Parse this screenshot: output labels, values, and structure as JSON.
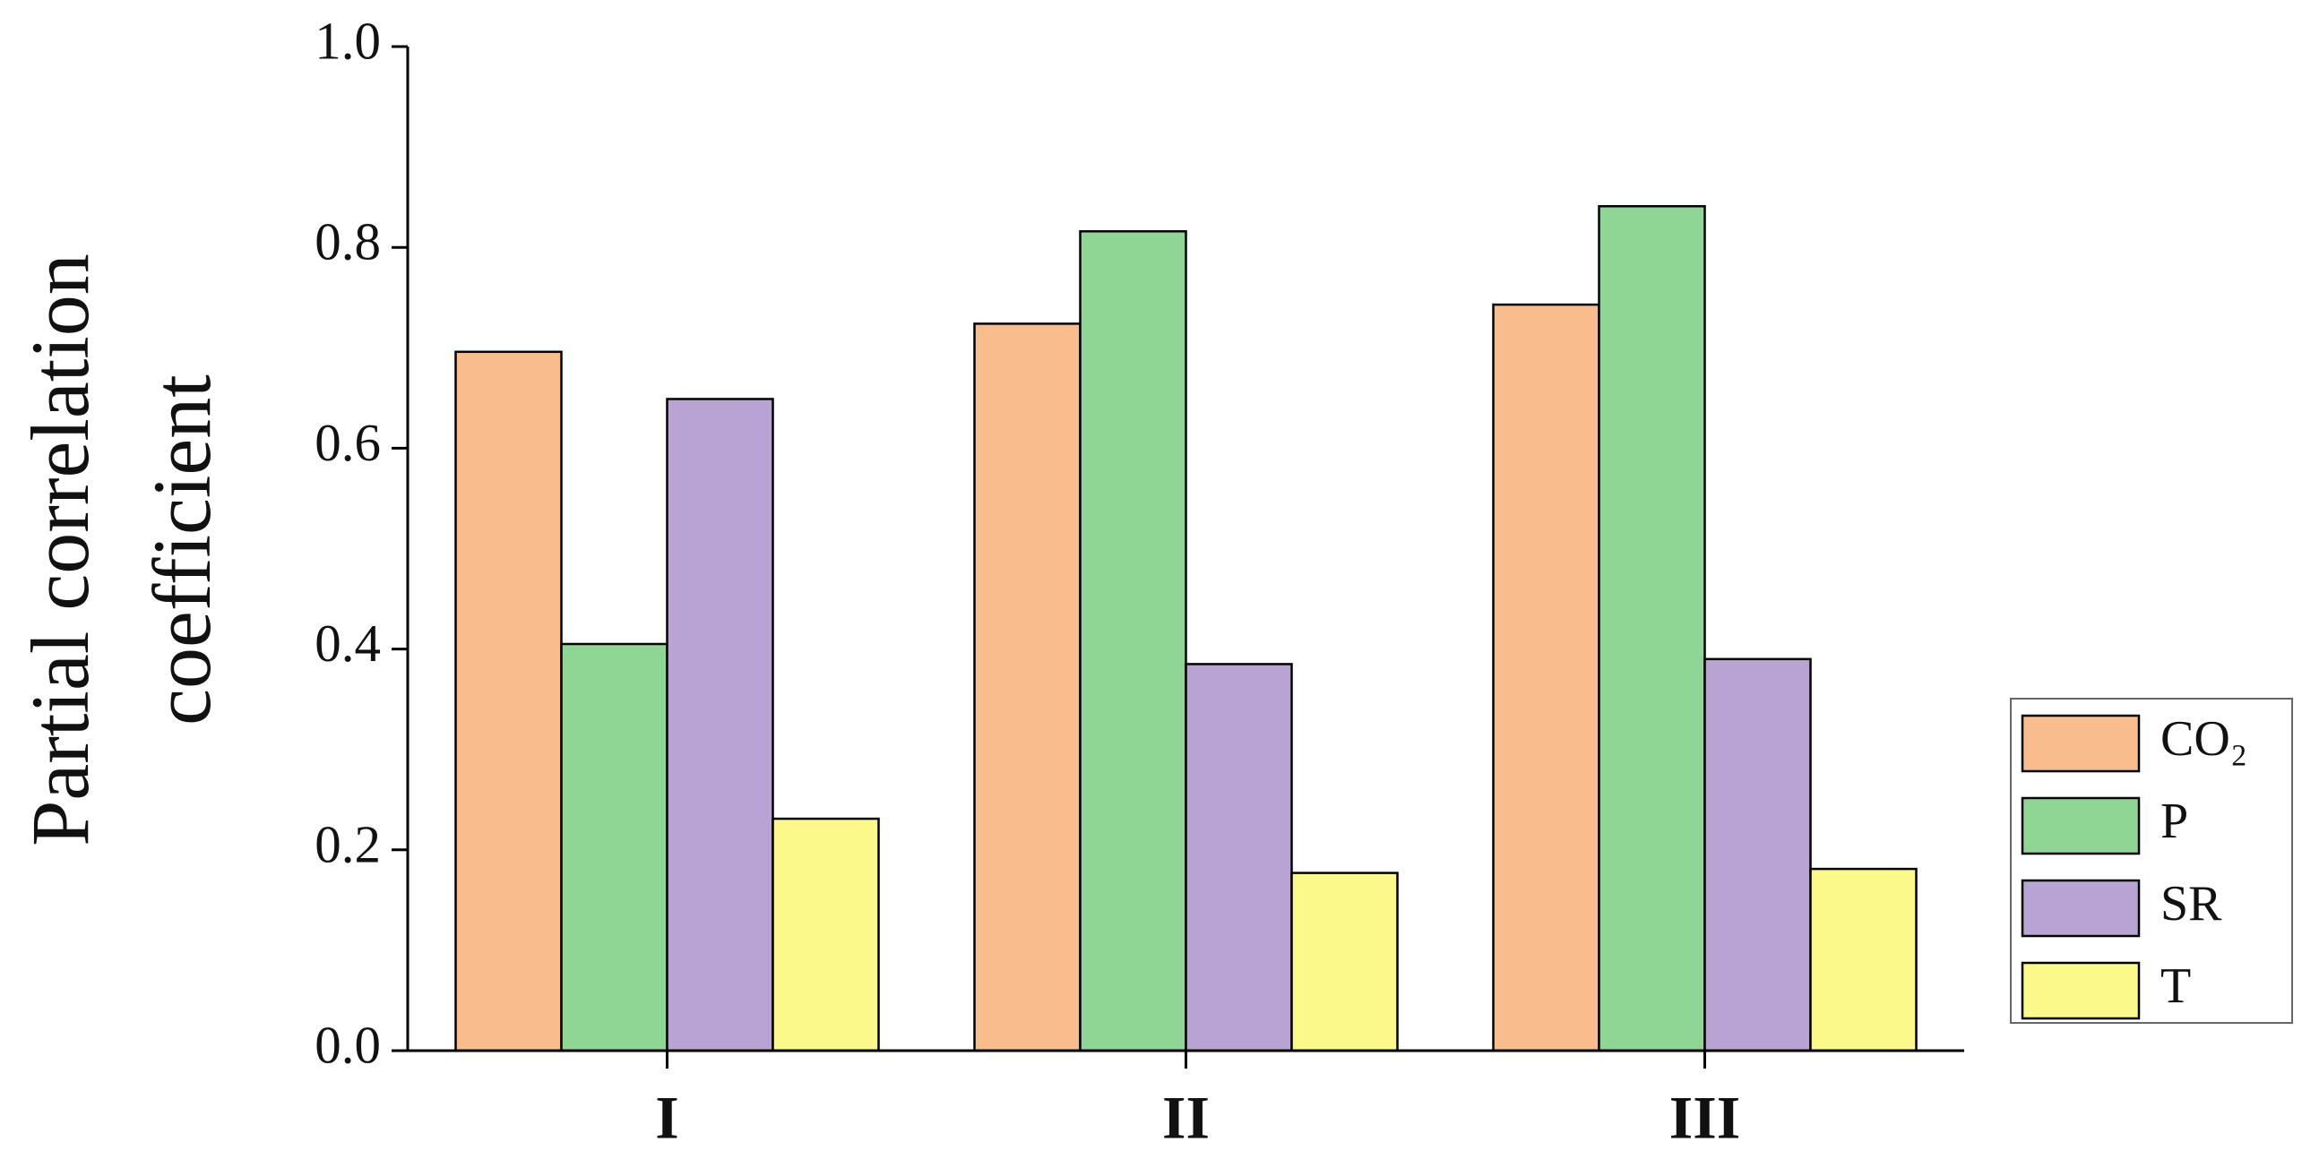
{
  "chart_data": {
    "type": "bar",
    "y_label": [
      "Partial correlation",
      "coefficient"
    ],
    "categories": [
      "I",
      "II",
      "III"
    ],
    "series": [
      {
        "name": "CO₂",
        "color": "#f9bc8c",
        "values": [
          0.696,
          0.724,
          0.743
        ]
      },
      {
        "name": "P",
        "color": "#8fd694",
        "values": [
          0.405,
          0.816,
          0.841
        ]
      },
      {
        "name": "SR",
        "color": "#b9a2d4",
        "values": [
          0.649,
          0.385,
          0.39
        ]
      },
      {
        "name": "T",
        "color": "#fbf989",
        "values": [
          0.231,
          0.177,
          0.181
        ]
      }
    ],
    "ylim": [
      0,
      1.0
    ],
    "yticks": [
      {
        "value": 0,
        "label": "0.0"
      },
      {
        "value": 0.2,
        "label": "0.2"
      },
      {
        "value": 0.4,
        "label": "0.4"
      },
      {
        "value": 0.6,
        "label": "0.6"
      },
      {
        "value": 0.8,
        "label": "0.8"
      },
      {
        "value": 1.0,
        "label": "1.0"
      }
    ],
    "grid": false,
    "legend": "right"
  }
}
